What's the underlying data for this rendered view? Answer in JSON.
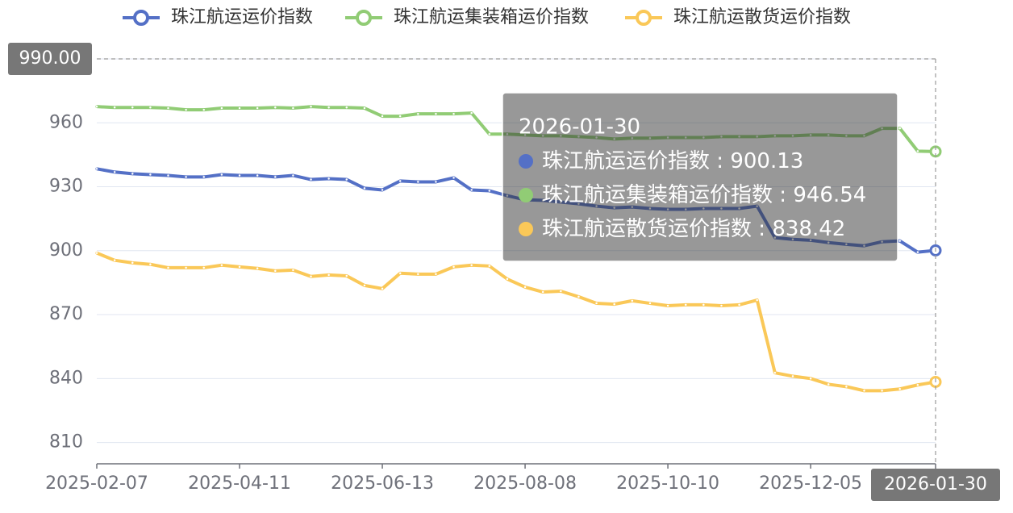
{
  "chart_data": {
    "type": "line",
    "categories": [
      "2025-02-07",
      null,
      null,
      null,
      null,
      null,
      null,
      null,
      "2025-04-11",
      null,
      null,
      null,
      null,
      null,
      null,
      null,
      "2025-06-13",
      null,
      null,
      null,
      null,
      null,
      null,
      null,
      "2025-08-08",
      null,
      null,
      null,
      null,
      null,
      null,
      null,
      "2025-10-10",
      null,
      null,
      null,
      null,
      null,
      null,
      null,
      "2025-12-05",
      null,
      null,
      null,
      null,
      null,
      null,
      "2026-01-30"
    ],
    "series": [
      {
        "name": "珠江航运运价指数",
        "color": "#5470c6",
        "values": [
          938.4,
          936.9,
          936.1,
          935.7,
          935.3,
          934.6,
          934.6,
          935.7,
          935.3,
          935.3,
          934.6,
          935.3,
          933.4,
          933.8,
          933.4,
          929.3,
          928.5,
          932.7,
          932.3,
          932.3,
          934.2,
          928.5,
          928.1,
          925.8,
          923.9,
          923.6,
          922.8,
          922.0,
          920.9,
          920.1,
          920.5,
          919.8,
          919.4,
          919.4,
          919.8,
          919.8,
          919.8,
          920.9,
          906.1,
          905.3,
          904.9,
          903.8,
          903.0,
          902.3,
          904.2,
          904.6,
          899.3,
          900.13
        ]
      },
      {
        "name": "珠江航运集装箱运价指数",
        "color": "#91cc75",
        "values": [
          967.6,
          967.2,
          967.2,
          967.2,
          966.9,
          966.1,
          966.1,
          966.9,
          966.9,
          966.9,
          967.2,
          966.9,
          967.6,
          967.2,
          967.2,
          966.9,
          963.1,
          963.1,
          964.2,
          964.2,
          964.2,
          964.6,
          954.7,
          954.7,
          954.3,
          953.9,
          953.9,
          953.5,
          953.1,
          952.4,
          952.8,
          952.8,
          953.1,
          953.1,
          953.1,
          953.5,
          953.5,
          953.5,
          953.9,
          953.9,
          954.3,
          954.3,
          953.9,
          953.9,
          957.4,
          957.4,
          946.7,
          946.54
        ]
      },
      {
        "name": "珠江航运散货运价指数",
        "color": "#fac858",
        "values": [
          898.9,
          895.5,
          894.3,
          893.6,
          892.0,
          892.0,
          892.0,
          893.2,
          892.4,
          891.7,
          890.5,
          890.9,
          887.9,
          888.6,
          888.2,
          883.7,
          882.2,
          889.4,
          889.0,
          889.0,
          892.4,
          893.2,
          892.8,
          886.7,
          882.9,
          880.6,
          881.0,
          878.4,
          875.3,
          874.9,
          876.5,
          875.3,
          874.2,
          874.6,
          874.6,
          874.2,
          874.6,
          876.8,
          842.7,
          841.1,
          840.0,
          837.3,
          836.2,
          834.3,
          834.3,
          835.1,
          837.0,
          838.42
        ]
      }
    ],
    "ylim": [
      800,
      990
    ],
    "yticks": [
      810,
      840,
      870,
      900,
      930,
      960,
      990
    ],
    "grid": true,
    "legend": "top",
    "pointer_y_label": {
      "value": 990,
      "label": "990.00"
    },
    "tooltip": {
      "separator": " : "
    }
  }
}
